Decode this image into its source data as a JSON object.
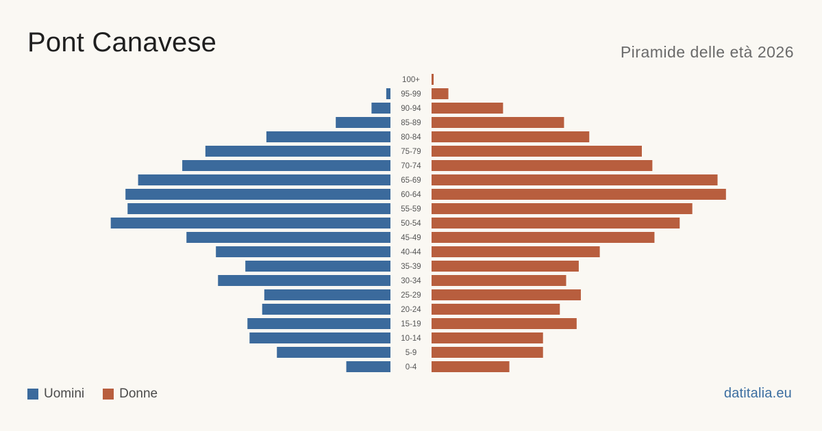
{
  "title": "Pont Canavese",
  "subtitle": "Piramide delle età 2026",
  "source": "datitalia.eu",
  "colors": {
    "men": "#3b6a9c",
    "women": "#b85e3e",
    "background": "#faf8f3",
    "label": "#555555"
  },
  "legend": {
    "men_label": "Uomini",
    "women_label": "Donne"
  },
  "chart_data": {
    "type": "bar",
    "orientation": "horizontal-pyramid",
    "categories": [
      "100+",
      "95-99",
      "90-94",
      "85-89",
      "80-84",
      "75-79",
      "70-74",
      "65-69",
      "60-64",
      "55-59",
      "50-54",
      "45-49",
      "40-44",
      "35-39",
      "30-34",
      "25-29",
      "20-24",
      "15-19",
      "10-14",
      "5-9",
      "0-4"
    ],
    "series": [
      {
        "name": "Uomini",
        "values": [
          0,
          2,
          9,
          26,
          59,
          88,
          99,
          120,
          126,
          125,
          133,
          97,
          83,
          69,
          82,
          60,
          61,
          68,
          67,
          54,
          21
        ]
      },
      {
        "name": "Donne",
        "values": [
          1,
          8,
          34,
          63,
          75,
          100,
          105,
          136,
          140,
          124,
          118,
          106,
          80,
          70,
          64,
          71,
          61,
          69,
          53,
          53,
          37
        ]
      }
    ],
    "legend_position": "bottom-left",
    "grid": false
  }
}
